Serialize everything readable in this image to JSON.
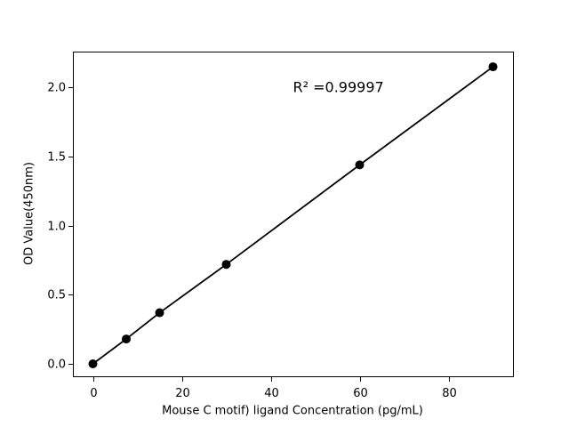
{
  "chart_data": {
    "type": "line",
    "x": [
      0,
      7.5,
      15,
      30,
      60,
      90
    ],
    "y": [
      0.0,
      0.18,
      0.37,
      0.72,
      1.44,
      2.15
    ],
    "title": "",
    "xlabel": "Mouse C motif) ligand Concentration (pg/mL)",
    "ylabel": "OD Value(450nm)",
    "xlim": [
      -4.5,
      94.5
    ],
    "ylim": [
      -0.09,
      2.26
    ],
    "x_tick_labels": [
      "0",
      "20",
      "40",
      "60",
      "80"
    ],
    "y_tick_labels": [
      "0.0",
      "0.5",
      "1.0",
      "1.5",
      "2.0"
    ],
    "grid": false,
    "legend": "none",
    "marker": "circle",
    "annotation": {
      "text": "R² =0.99997",
      "x": 45,
      "y": 2.0
    },
    "colors": {
      "line": "#000000",
      "marker": "#000000",
      "axes": "#000000",
      "text": "#000000",
      "background": "#ffffff"
    }
  }
}
